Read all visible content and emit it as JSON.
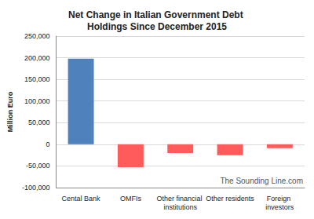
{
  "chart_data": {
    "type": "bar",
    "title": "Net Change in Italian Government Debt Holdings Since December 2015",
    "y_label": "Million Euro",
    "annotations": [
      "The Sounding Line.com"
    ],
    "categories": [
      "Cental Bank",
      "OMFIs",
      "Other financial institutions",
      "Other residents",
      "Foreign investors"
    ],
    "values": [
      198000,
      -53000,
      -20000,
      -25000,
      -9000
    ],
    "colors": [
      "#4f81bd",
      "#ff5b5b",
      "#ff5b5b",
      "#ff5b5b",
      "#ff5b5b"
    ],
    "ylim": [
      -100000,
      250000
    ],
    "yticks": [
      {
        "value": -100000,
        "label": "-100,000"
      },
      {
        "value": -50000,
        "label": "-50,000"
      },
      0,
      {
        "value": 50000,
        "label": "50,000"
      },
      {
        "value": 100000,
        "label": "100,000"
      },
      {
        "value": 150000,
        "label": "150,000"
      },
      {
        "value": 200000,
        "label": "200,000"
      },
      {
        "value": 250000,
        "label": "250,000"
      }
    ],
    "grid": true
  }
}
